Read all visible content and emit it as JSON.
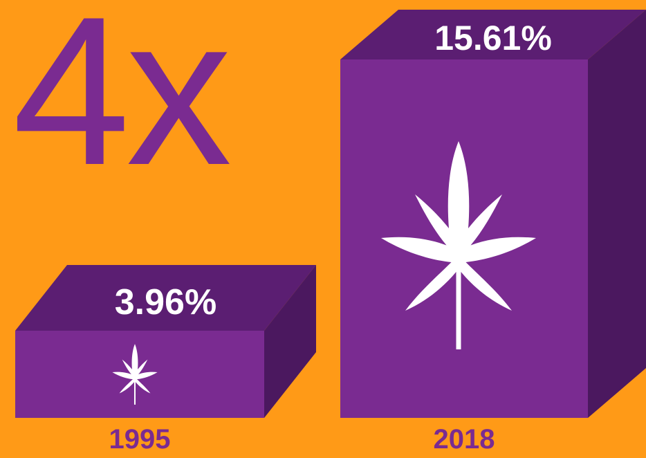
{
  "headline": {
    "text": "4x"
  },
  "colors": {
    "background": "#ff9a17",
    "accent": "#7a2b91",
    "text_on_bar": "#ffffff",
    "headline": "#7a2b91"
  },
  "icons": {
    "bar_icon": "cannabis-leaf-icon"
  },
  "chart_data": {
    "type": "bar",
    "categories": [
      "1995",
      "2018"
    ],
    "values": [
      3.96,
      15.61
    ],
    "value_labels": [
      "3.96%",
      "15.61%"
    ],
    "title": "",
    "xlabel": "",
    "ylabel": "",
    "ylim": [
      0,
      16
    ],
    "grid": false,
    "legend": "none"
  }
}
